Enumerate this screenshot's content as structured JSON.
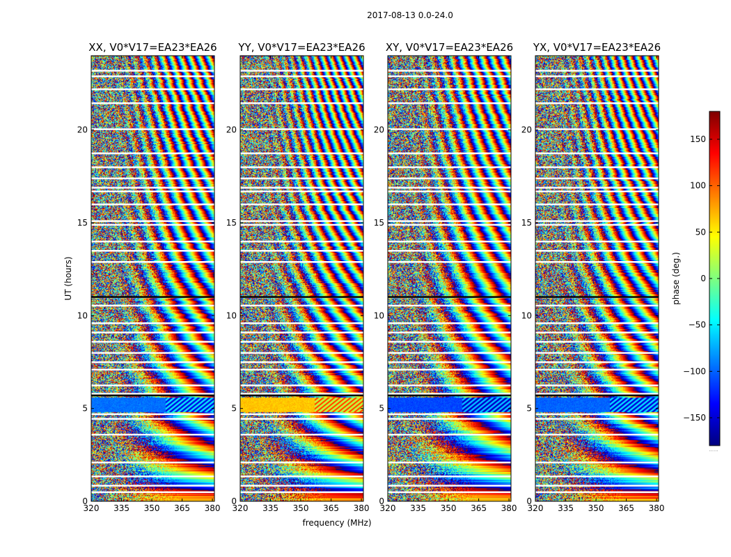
{
  "chart_data": {
    "type": "heatmap",
    "suptitle": "2017-08-13 0.0-24.0",
    "xlabel": "frequency (MHz)",
    "ylabel": "UT (hours)",
    "xlim": [
      320,
      381
    ],
    "ylim": [
      0,
      24
    ],
    "xticks": [
      320,
      335,
      350,
      365,
      380
    ],
    "yticks": [
      0,
      5,
      10,
      15,
      20
    ],
    "panels": [
      {
        "title": "XX, V0*V17=EA23*EA26",
        "band_5h_phase": -95
      },
      {
        "title": "YY, V0*V17=EA23*EA26",
        "band_5h_phase": 65
      },
      {
        "title": "XY, V0*V17=EA23*EA26",
        "band_5h_phase": -110
      },
      {
        "title": "YX, V0*V17=EA23*EA26",
        "band_5h_phase": -100
      }
    ],
    "flagged_ut_hours": [
      0.5,
      0.85,
      1.35,
      2.1,
      3.6,
      4.45,
      4.7,
      5.8,
      6.25,
      7.1,
      7.5,
      8.0,
      8.6,
      9.1,
      9.6,
      10.55,
      11.0,
      12.9,
      13.5,
      14.0,
      14.9,
      15.1,
      16.0,
      16.7,
      16.9,
      17.4,
      18.0,
      18.75,
      20.05,
      21.45,
      22.2,
      22.9,
      23.2
    ],
    "colorbar": {
      "label": "phase (deg.)",
      "range": [
        -180,
        180
      ],
      "ticks": [
        -150,
        -100,
        -50,
        0,
        50,
        100,
        150
      ],
      "tick_labels": [
        "−150",
        "−100",
        "−50",
        "0",
        "50",
        "100",
        "150"
      ],
      "footnote": "......"
    },
    "colors": {
      "colormap": [
        "#00007f",
        "#0000ff",
        "#007fff",
        "#00ffff",
        "#7fff7f",
        "#ffff00",
        "#ff7f00",
        "#ff0000",
        "#7f0000"
      ],
      "flag": "#ffffff",
      "frame": "#000000"
    }
  }
}
